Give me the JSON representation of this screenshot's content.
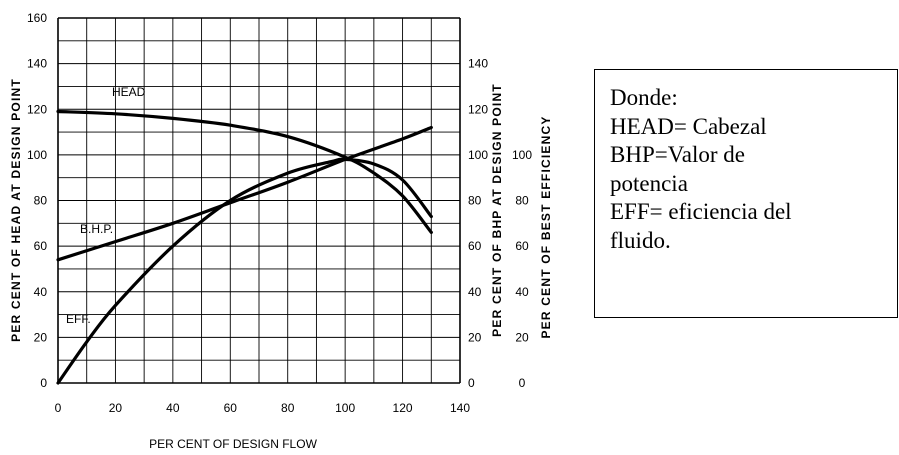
{
  "chart_data": {
    "type": "line",
    "xlabel": "PER CENT OF DESIGN FLOW",
    "ylabel_left": "PER CENT OF HEAD AT DESIGN POINT",
    "ylabel_right1": "PER CENT OF BHP AT DESIGN POINT",
    "ylabel_right2": "PER CENT OF BEST EFFICIENCY",
    "xlim": [
      0,
      140
    ],
    "ylim": [
      0,
      160
    ],
    "grid": true,
    "x_ticks": [
      "0",
      "20",
      "40",
      "60",
      "80",
      "100",
      "120",
      "140"
    ],
    "y_ticks_left": [
      "0",
      "20",
      "40",
      "60",
      "80",
      "100",
      "120",
      "140",
      "160"
    ],
    "y_ticks_right1": [
      "0",
      "20",
      "40",
      "60",
      "80",
      "100",
      "120",
      "140"
    ],
    "y_ticks_right2": [
      "0",
      "20",
      "40",
      "60",
      "80",
      "100"
    ],
    "series": [
      {
        "name": "HEAD",
        "x": [
          0,
          20,
          40,
          60,
          80,
          100,
          110,
          120,
          130
        ],
        "y": [
          119,
          118,
          116,
          113,
          108,
          99,
          92,
          82,
          66
        ]
      },
      {
        "name": "B.H.P.",
        "x": [
          0,
          20,
          40,
          60,
          80,
          100,
          120,
          130
        ],
        "y": [
          54,
          62,
          70,
          79,
          88,
          98,
          107,
          112
        ]
      },
      {
        "name": "EFF.",
        "x": [
          0,
          10,
          20,
          40,
          60,
          80,
          95,
          100,
          110,
          120,
          130
        ],
        "y": [
          0,
          18,
          34,
          60,
          80,
          92,
          97,
          98,
          96,
          89,
          73
        ]
      }
    ]
  },
  "legend_box": {
    "line1": "Donde:",
    "line2": "HEAD= Cabezal",
    "line3": "BHP=Valor de",
    "line4": "potencia",
    "line5": "EFF= eficiencia del",
    "line6": "fluido."
  }
}
